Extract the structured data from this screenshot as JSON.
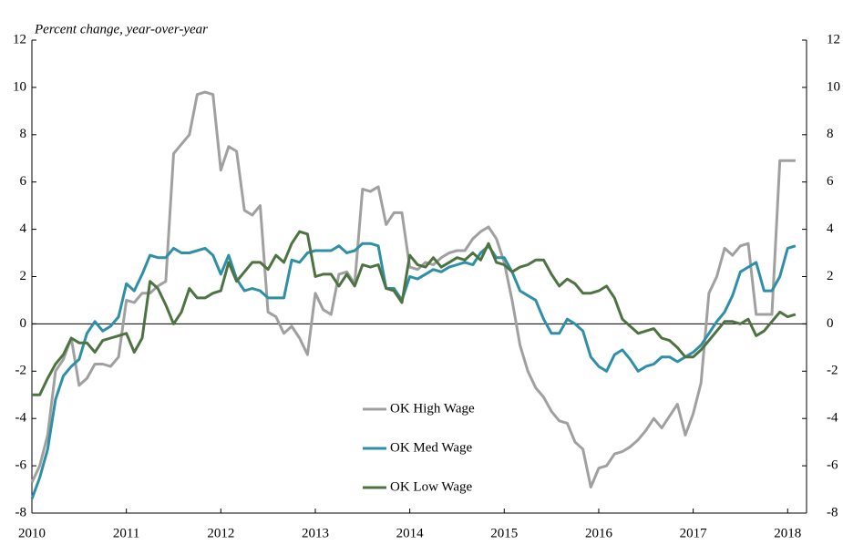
{
  "chart_data": {
    "type": "line",
    "subtitle": "Percent change, year-over-year",
    "x": [
      2010,
      2010.083,
      2010.167,
      2010.25,
      2010.333,
      2010.417,
      2010.5,
      2010.583,
      2010.667,
      2010.75,
      2010.833,
      2010.917,
      2011,
      2011.083,
      2011.167,
      2011.25,
      2011.333,
      2011.417,
      2011.5,
      2011.583,
      2011.667,
      2011.75,
      2011.833,
      2011.917,
      2012,
      2012.083,
      2012.167,
      2012.25,
      2012.333,
      2012.417,
      2012.5,
      2012.583,
      2012.667,
      2012.75,
      2012.833,
      2012.917,
      2013,
      2013.083,
      2013.167,
      2013.25,
      2013.333,
      2013.417,
      2013.5,
      2013.583,
      2013.667,
      2013.75,
      2013.833,
      2013.917,
      2014,
      2014.083,
      2014.167,
      2014.25,
      2014.333,
      2014.417,
      2014.5,
      2014.583,
      2014.667,
      2014.75,
      2014.833,
      2014.917,
      2015,
      2015.083,
      2015.167,
      2015.25,
      2015.333,
      2015.417,
      2015.5,
      2015.583,
      2015.667,
      2015.75,
      2015.833,
      2015.917,
      2016,
      2016.083,
      2016.167,
      2016.25,
      2016.333,
      2016.417,
      2016.5,
      2016.583,
      2016.667,
      2016.75,
      2016.833,
      2016.917,
      2017,
      2017.083,
      2017.167,
      2017.25,
      2017.333,
      2017.417,
      2017.5,
      2017.583,
      2017.667,
      2017.75,
      2017.833,
      2017.917,
      2018,
      2018.083
    ],
    "series": [
      {
        "name": "OK High Wage",
        "color": "#a0a0a0",
        "values": [
          -6.7,
          -6.0,
          -4.7,
          -2.0,
          -1.5,
          -0.6,
          -2.6,
          -2.3,
          -1.7,
          -1.7,
          -1.8,
          -1.4,
          1.0,
          0.9,
          1.3,
          1.3,
          1.6,
          1.8,
          7.2,
          7.6,
          8.0,
          9.7,
          9.8,
          9.7,
          6.5,
          7.5,
          7.3,
          4.8,
          4.6,
          5.0,
          0.5,
          0.3,
          -0.4,
          -0.1,
          -0.6,
          -1.3,
          1.3,
          0.6,
          0.4,
          2.1,
          2.2,
          1.7,
          5.7,
          5.6,
          5.8,
          4.2,
          4.7,
          4.7,
          2.4,
          2.3,
          2.6,
          2.5,
          2.8,
          3.0,
          3.1,
          3.1,
          3.6,
          3.9,
          4.1,
          3.6,
          2.6,
          1.0,
          -0.9,
          -2.0,
          -2.7,
          -3.1,
          -3.7,
          -4.1,
          -4.2,
          -5.0,
          -5.3,
          -6.9,
          -6.1,
          -6.0,
          -5.5,
          -5.4,
          -5.2,
          -4.9,
          -4.5,
          -4.0,
          -4.4,
          -3.9,
          -3.4,
          -4.7,
          -3.8,
          -2.5,
          1.3,
          2.0,
          3.2,
          2.9,
          3.3,
          3.4,
          0.4,
          0.4,
          0.4,
          6.9,
          6.9,
          6.9
        ]
      },
      {
        "name": "OK Med Wage",
        "color": "#2e8fa7",
        "values": [
          -7.4,
          -6.5,
          -5.3,
          -3.2,
          -2.2,
          -1.8,
          -1.5,
          -0.4,
          0.1,
          -0.3,
          -0.1,
          0.3,
          1.7,
          1.4,
          2.1,
          2.9,
          2.8,
          2.8,
          3.2,
          3.0,
          3.0,
          3.1,
          3.2,
          2.9,
          2.1,
          2.9,
          1.9,
          1.4,
          1.5,
          1.4,
          1.1,
          1.1,
          1.1,
          2.7,
          2.6,
          3.0,
          3.1,
          3.1,
          3.1,
          3.3,
          3.0,
          3.1,
          3.4,
          3.4,
          3.3,
          1.5,
          1.5,
          1.0,
          2.0,
          1.9,
          2.1,
          2.3,
          2.2,
          2.4,
          2.5,
          2.6,
          2.5,
          3.0,
          3.3,
          2.8,
          2.8,
          2.2,
          1.4,
          1.2,
          1.0,
          0.2,
          -0.4,
          -0.4,
          0.2,
          0.0,
          -0.3,
          -1.4,
          -1.8,
          -2.0,
          -1.3,
          -1.1,
          -1.5,
          -2.0,
          -1.8,
          -1.7,
          -1.4,
          -1.4,
          -1.6,
          -1.4,
          -1.2,
          -0.9,
          -0.4,
          0.1,
          0.5,
          1.2,
          2.2,
          2.4,
          2.6,
          1.4,
          1.4,
          2.0,
          3.2,
          3.3
        ]
      },
      {
        "name": "OK Low Wage",
        "color": "#4e7343",
        "values": [
          -3.0,
          -3.0,
          -2.3,
          -1.7,
          -1.3,
          -0.6,
          -0.8,
          -0.8,
          -1.2,
          -0.7,
          -0.6,
          -0.5,
          -0.4,
          -1.2,
          -0.6,
          1.8,
          1.5,
          0.8,
          0.0,
          0.5,
          1.5,
          1.1,
          1.1,
          1.3,
          1.4,
          2.6,
          1.8,
          2.2,
          2.6,
          2.6,
          2.3,
          2.9,
          2.6,
          3.4,
          3.9,
          3.8,
          2.0,
          2.1,
          2.1,
          1.6,
          2.1,
          1.6,
          2.5,
          2.4,
          2.5,
          1.5,
          1.4,
          0.9,
          2.9,
          2.5,
          2.4,
          2.8,
          2.4,
          2.6,
          2.8,
          2.7,
          3.0,
          2.7,
          3.4,
          2.6,
          2.5,
          2.2,
          2.4,
          2.5,
          2.7,
          2.7,
          2.1,
          1.6,
          1.9,
          1.7,
          1.3,
          1.3,
          1.4,
          1.6,
          1.1,
          0.2,
          -0.1,
          -0.4,
          -0.3,
          -0.2,
          -0.6,
          -0.7,
          -1.0,
          -1.4,
          -1.4,
          -1.1,
          -0.7,
          -0.3,
          0.1,
          0.1,
          0.0,
          0.2,
          -0.5,
          -0.3,
          0.1,
          0.5,
          0.3,
          0.4
        ]
      }
    ],
    "xlim": [
      2010,
      2018.2
    ],
    "xticks": [
      2010,
      2011,
      2012,
      2013,
      2014,
      2015,
      2016,
      2017,
      2018
    ],
    "ylim": [
      -8,
      12
    ],
    "yticks": [
      -8,
      -6,
      -4,
      -2,
      0,
      2,
      4,
      6,
      8,
      10,
      12
    ],
    "y2lim": [
      -8,
      12
    ],
    "y2ticks": [
      -8,
      -6,
      -4,
      -2,
      0,
      2,
      4,
      6,
      8,
      10,
      12
    ]
  }
}
